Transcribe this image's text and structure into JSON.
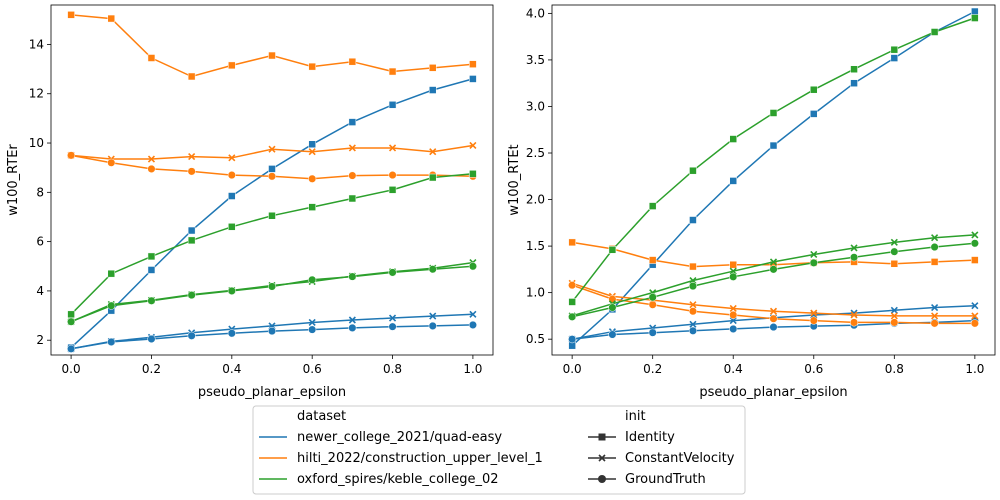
{
  "chart_data": [
    {
      "type": "line",
      "xlabel": "pseudo_planar_epsilon",
      "ylabel": "w100_RTEr",
      "xlim": [
        -0.05,
        1.05
      ],
      "ylim": [
        1.4,
        15.6
      ],
      "xticks": [
        "0.0",
        "0.2",
        "0.4",
        "0.6",
        "0.8",
        "1.0"
      ],
      "yticks": [
        "2",
        "4",
        "6",
        "8",
        "10",
        "12",
        "14"
      ],
      "x": [
        0.0,
        0.1,
        0.2,
        0.3,
        0.4,
        0.5,
        0.6,
        0.7,
        0.8,
        0.9,
        1.0
      ],
      "series": [
        {
          "dataset": "newer_college_2021/quad-easy",
          "init": "Identity",
          "values": [
            1.7,
            3.2,
            4.85,
            6.45,
            7.85,
            8.95,
            9.95,
            10.85,
            11.55,
            12.15,
            12.6
          ]
        },
        {
          "dataset": "newer_college_2021/quad-easy",
          "init": "ConstantVelocity",
          "values": [
            1.65,
            1.95,
            2.12,
            2.3,
            2.45,
            2.58,
            2.72,
            2.82,
            2.9,
            2.98,
            3.05
          ]
        },
        {
          "dataset": "newer_college_2021/quad-easy",
          "init": "GroundTruth",
          "values": [
            1.65,
            1.93,
            2.05,
            2.18,
            2.28,
            2.37,
            2.43,
            2.5,
            2.55,
            2.58,
            2.62
          ]
        },
        {
          "dataset": "hilti_2022/construction_upper_level_1",
          "init": "Identity",
          "values": [
            15.2,
            15.05,
            13.45,
            12.7,
            13.15,
            13.55,
            13.1,
            13.3,
            12.9,
            13.05,
            13.2
          ]
        },
        {
          "dataset": "hilti_2022/construction_upper_level_1",
          "init": "ConstantVelocity",
          "values": [
            9.5,
            9.35,
            9.35,
            9.45,
            9.4,
            9.75,
            9.65,
            9.8,
            9.8,
            9.65,
            9.9
          ]
        },
        {
          "dataset": "hilti_2022/construction_upper_level_1",
          "init": "GroundTruth",
          "values": [
            9.5,
            9.2,
            8.95,
            8.85,
            8.7,
            8.65,
            8.55,
            8.68,
            8.7,
            8.7,
            8.65
          ]
        },
        {
          "dataset": "oxford_spires/keble_college_02",
          "init": "Identity",
          "values": [
            3.05,
            4.7,
            5.4,
            6.05,
            6.6,
            7.05,
            7.4,
            7.75,
            8.1,
            8.6,
            8.75
          ]
        },
        {
          "dataset": "oxford_spires/keble_college_02",
          "init": "ConstantVelocity",
          "values": [
            2.75,
            3.45,
            3.62,
            3.85,
            4.02,
            4.22,
            4.38,
            4.6,
            4.78,
            4.92,
            5.15
          ]
        },
        {
          "dataset": "oxford_spires/keble_college_02",
          "init": "GroundTruth",
          "values": [
            2.75,
            3.4,
            3.6,
            3.83,
            4.0,
            4.18,
            4.45,
            4.58,
            4.75,
            4.88,
            5.0
          ]
        }
      ]
    },
    {
      "type": "line",
      "xlabel": "pseudo_planar_epsilon",
      "ylabel": "w100_RTEt",
      "xlim": [
        -0.05,
        1.05
      ],
      "ylim": [
        0.33,
        4.09
      ],
      "xticks": [
        "0.0",
        "0.2",
        "0.4",
        "0.6",
        "0.8",
        "1.0"
      ],
      "yticks": [
        "0.5",
        "1.0",
        "1.5",
        "2.0",
        "2.5",
        "3.0",
        "3.5",
        "4.0"
      ],
      "x": [
        0.0,
        0.1,
        0.2,
        0.3,
        0.4,
        0.5,
        0.6,
        0.7,
        0.8,
        0.9,
        1.0
      ],
      "series": [
        {
          "dataset": "newer_college_2021/quad-easy",
          "init": "Identity",
          "values": [
            0.43,
            0.82,
            1.3,
            1.78,
            2.2,
            2.58,
            2.92,
            3.25,
            3.52,
            3.8,
            4.02
          ]
        },
        {
          "dataset": "newer_college_2021/quad-easy",
          "init": "ConstantVelocity",
          "values": [
            0.5,
            0.58,
            0.62,
            0.66,
            0.7,
            0.73,
            0.76,
            0.78,
            0.81,
            0.84,
            0.86
          ]
        },
        {
          "dataset": "newer_college_2021/quad-easy",
          "init": "GroundTruth",
          "values": [
            0.5,
            0.55,
            0.57,
            0.59,
            0.61,
            0.63,
            0.64,
            0.65,
            0.67,
            0.68,
            0.7
          ]
        },
        {
          "dataset": "hilti_2022/construction_upper_level_1",
          "init": "Identity",
          "values": [
            1.54,
            1.47,
            1.35,
            1.28,
            1.3,
            1.3,
            1.32,
            1.33,
            1.31,
            1.33,
            1.35
          ]
        },
        {
          "dataset": "hilti_2022/construction_upper_level_1",
          "init": "ConstantVelocity",
          "values": [
            1.1,
            0.96,
            0.92,
            0.87,
            0.83,
            0.8,
            0.78,
            0.76,
            0.75,
            0.75,
            0.75
          ]
        },
        {
          "dataset": "hilti_2022/construction_upper_level_1",
          "init": "GroundTruth",
          "values": [
            1.08,
            0.93,
            0.87,
            0.8,
            0.76,
            0.72,
            0.7,
            0.68,
            0.68,
            0.67,
            0.67
          ]
        },
        {
          "dataset": "oxford_spires/keble_college_02",
          "init": "Identity",
          "values": [
            0.9,
            1.46,
            1.93,
            2.31,
            2.65,
            2.93,
            3.18,
            3.4,
            3.61,
            3.8,
            3.95
          ]
        },
        {
          "dataset": "oxford_spires/keble_college_02",
          "init": "ConstantVelocity",
          "values": [
            0.75,
            0.88,
            1.0,
            1.13,
            1.23,
            1.33,
            1.41,
            1.48,
            1.54,
            1.59,
            1.62
          ]
        },
        {
          "dataset": "oxford_spires/keble_college_02",
          "init": "GroundTruth",
          "values": [
            0.74,
            0.84,
            0.95,
            1.07,
            1.17,
            1.25,
            1.32,
            1.38,
            1.44,
            1.49,
            1.53
          ]
        }
      ]
    }
  ],
  "legend": {
    "dataset_title": "dataset",
    "datasets": [
      {
        "label": "newer_college_2021/quad-easy",
        "color": "#1f77b4"
      },
      {
        "label": "hilti_2022/construction_upper_level_1",
        "color": "#ff7f0e"
      },
      {
        "label": "oxford_spires/keble_college_02",
        "color": "#2ca02c"
      }
    ],
    "init_title": "init",
    "inits": [
      {
        "label": "Identity",
        "marker": "square"
      },
      {
        "label": "ConstantVelocity",
        "marker": "x"
      },
      {
        "label": "GroundTruth",
        "marker": "circle"
      }
    ],
    "placement": "lower-center"
  }
}
